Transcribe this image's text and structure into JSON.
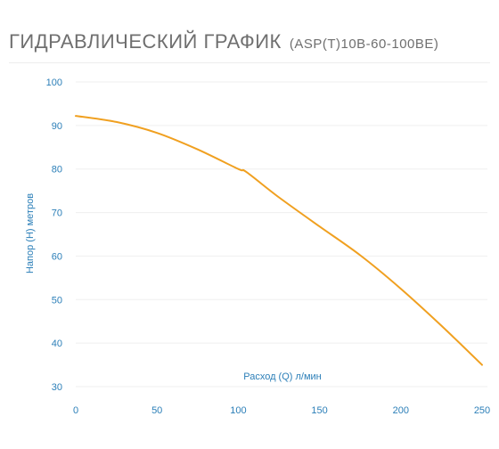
{
  "title": {
    "main": "ГИДРАВЛИЧЕСКИЙ ГРАФИК",
    "model": "(ASP(T)10B-60-100BE)"
  },
  "chart_data": {
    "type": "line",
    "xlabel": "Расход (Q) л/мин",
    "ylabel": "Напор (Н) метров",
    "xlim": [
      0,
      250
    ],
    "ylim": [
      30,
      100
    ],
    "xticks": [
      0,
      50,
      100,
      150,
      200,
      250
    ],
    "yticks": [
      30,
      40,
      50,
      60,
      70,
      80,
      90,
      100
    ],
    "grid": "horizontal",
    "series": [
      {
        "color": "#f0a020",
        "x": [
          0,
          25,
          50,
          75,
          100,
          105,
          125,
          150,
          175,
          200,
          225,
          250
        ],
        "y": [
          92.2,
          90.8,
          88.3,
          84.5,
          80.0,
          79.3,
          73.5,
          66.8,
          60.2,
          52.5,
          44.0,
          35.0
        ]
      }
    ]
  }
}
